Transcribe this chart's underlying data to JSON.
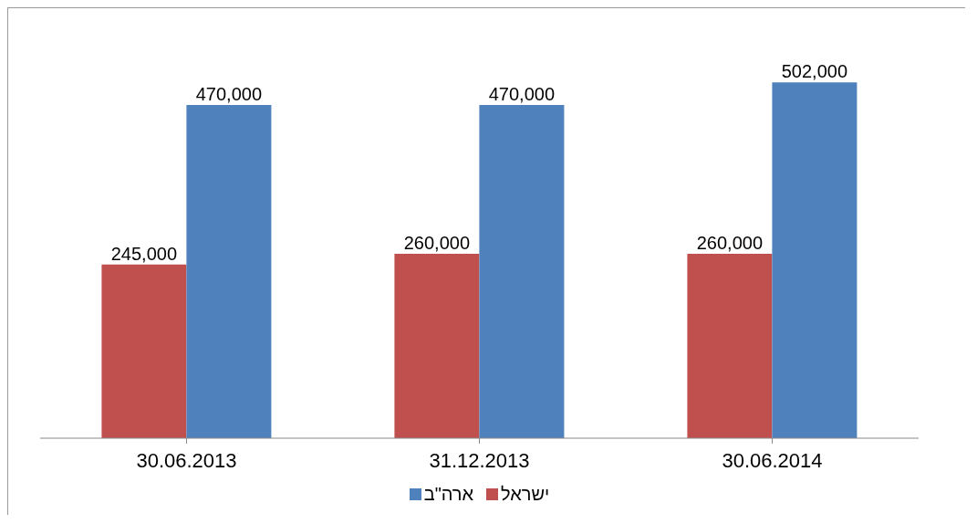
{
  "chart_data": {
    "type": "bar",
    "categories": [
      "30.06.2013",
      "31.12.2013",
      "30.06.2014"
    ],
    "series": [
      {
        "name": "ישראל",
        "color": "#c0504d",
        "values": [
          245000,
          260000,
          260000
        ],
        "value_labels": [
          "245,000",
          "260,000",
          "260,000"
        ]
      },
      {
        "name": "ארה\"ב",
        "color": "#4f81bd",
        "values": [
          470000,
          470000,
          502000
        ],
        "value_labels": [
          "470,000",
          "470,000",
          "502,000"
        ]
      }
    ],
    "legend": "bottom",
    "grid": false
  }
}
